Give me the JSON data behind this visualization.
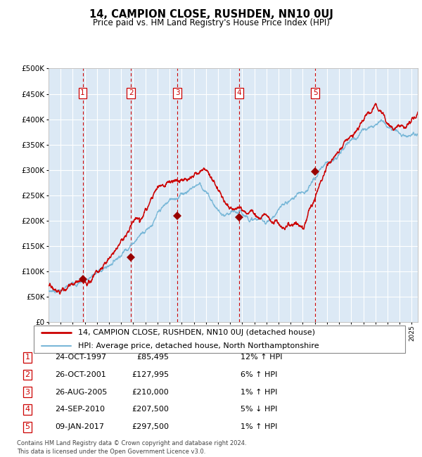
{
  "title": "14, CAMPION CLOSE, RUSHDEN, NN10 0UJ",
  "subtitle": "Price paid vs. HM Land Registry's House Price Index (HPI)",
  "footnote": "Contains HM Land Registry data © Crown copyright and database right 2024.\nThis data is licensed under the Open Government Licence v3.0.",
  "legend_line1": "14, CAMPION CLOSE, RUSHDEN, NN10 0UJ (detached house)",
  "legend_line2": "HPI: Average price, detached house, North Northamptonshire",
  "sales": [
    {
      "num": 1,
      "date_x": 1997.82,
      "price": 85495,
      "label": "24-OCT-1997",
      "pct": "12%",
      "dir": "↑"
    },
    {
      "num": 2,
      "date_x": 2001.82,
      "price": 127995,
      "label": "26-OCT-2001",
      "pct": "6%",
      "dir": "↑"
    },
    {
      "num": 3,
      "date_x": 2005.65,
      "price": 210000,
      "label": "26-AUG-2005",
      "pct": "1%",
      "dir": "↑"
    },
    {
      "num": 4,
      "date_x": 2010.73,
      "price": 207500,
      "label": "24-SEP-2010",
      "pct": "5%",
      "dir": "↓"
    },
    {
      "num": 5,
      "date_x": 2017.02,
      "price": 297500,
      "label": "09-JAN-2017",
      "pct": "1%",
      "dir": "↑"
    }
  ],
  "sale_table": [
    [
      "1",
      "24-OCT-1997",
      "£85,495",
      "12% ↑ HPI"
    ],
    [
      "2",
      "26-OCT-2001",
      "£127,995",
      "6% ↑ HPI"
    ],
    [
      "3",
      "26-AUG-2005",
      "£210,000",
      "1% ↑ HPI"
    ],
    [
      "4",
      "24-SEP-2010",
      "£207,500",
      "5% ↓ HPI"
    ],
    [
      "5",
      "09-JAN-2017",
      "£297,500",
      "1% ↑ HPI"
    ]
  ],
  "hpi_color": "#7ab8d8",
  "price_color": "#cc0000",
  "bg_color": "#dce9f5",
  "grid_color": "#ffffff",
  "vline_color": "#cc0000",
  "marker_color": "#990000",
  "box_color": "#cc0000",
  "ylim": [
    0,
    500000
  ],
  "xlim_start": 1995.0,
  "xlim_end": 2025.5
}
